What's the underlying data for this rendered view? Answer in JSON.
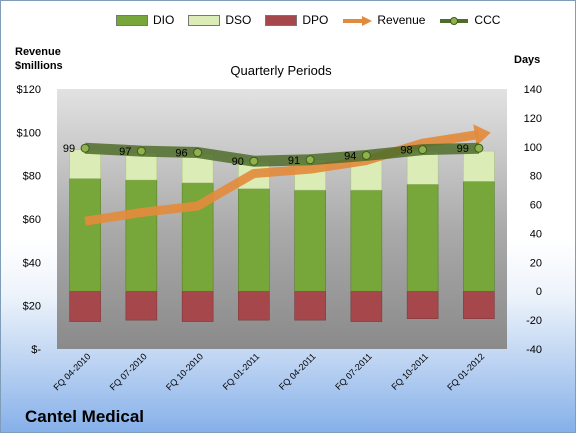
{
  "company": "Cantel Medical",
  "chart_data": {
    "type": "bar",
    "title": "Quarterly Periods",
    "ylabel_left": "Revenue $millions",
    "ylabel_right": "Days",
    "categories": [
      "FQ 04-2010",
      "FQ 07-2010",
      "FQ 10-2010",
      "FQ 01-2011",
      "FQ 04-2011",
      "FQ 07-2011",
      "FQ 10-2011",
      "FQ 01-2012"
    ],
    "left_axis": {
      "min": 0,
      "max": 120,
      "step": 20,
      "tick_labels": [
        "$-",
        "$20",
        "$40",
        "$60",
        "$80",
        "$100",
        "$120"
      ]
    },
    "right_axis": {
      "min": -40,
      "max": 140,
      "step": 20,
      "tick_labels": [
        "-40",
        "-20",
        "0",
        "20",
        "40",
        "60",
        "80",
        "100",
        "120",
        "140"
      ]
    },
    "series": [
      {
        "name": "DIO",
        "axis": "right",
        "kind": "stacked-bar",
        "color": "#77a63a",
        "values": [
          78,
          77,
          75,
          71,
          70,
          70,
          74,
          76
        ]
      },
      {
        "name": "DSO",
        "axis": "right",
        "kind": "stacked-bar",
        "color": "#dcecb6",
        "values": [
          20,
          19,
          20,
          19,
          21,
          23,
          23,
          21
        ]
      },
      {
        "name": "DPO",
        "axis": "right",
        "kind": "negative-bar",
        "color": "#a5474b",
        "values": [
          -21,
          -20,
          -21,
          -20,
          -20,
          -21,
          -19,
          -19
        ]
      },
      {
        "name": "Revenue",
        "axis": "left",
        "kind": "arrow-line",
        "color": "#e38b3c",
        "values": [
          59,
          63,
          66,
          81,
          83,
          87,
          95,
          99
        ]
      },
      {
        "name": "CCC",
        "axis": "right",
        "kind": "line",
        "color": "#4f6d2a",
        "values": [
          99,
          97,
          96,
          90,
          91,
          94,
          98,
          99
        ],
        "labels": [
          "99",
          "97",
          "96",
          "90",
          "91",
          "94",
          "98",
          "99"
        ]
      }
    ],
    "grid": false,
    "legend": "top"
  }
}
